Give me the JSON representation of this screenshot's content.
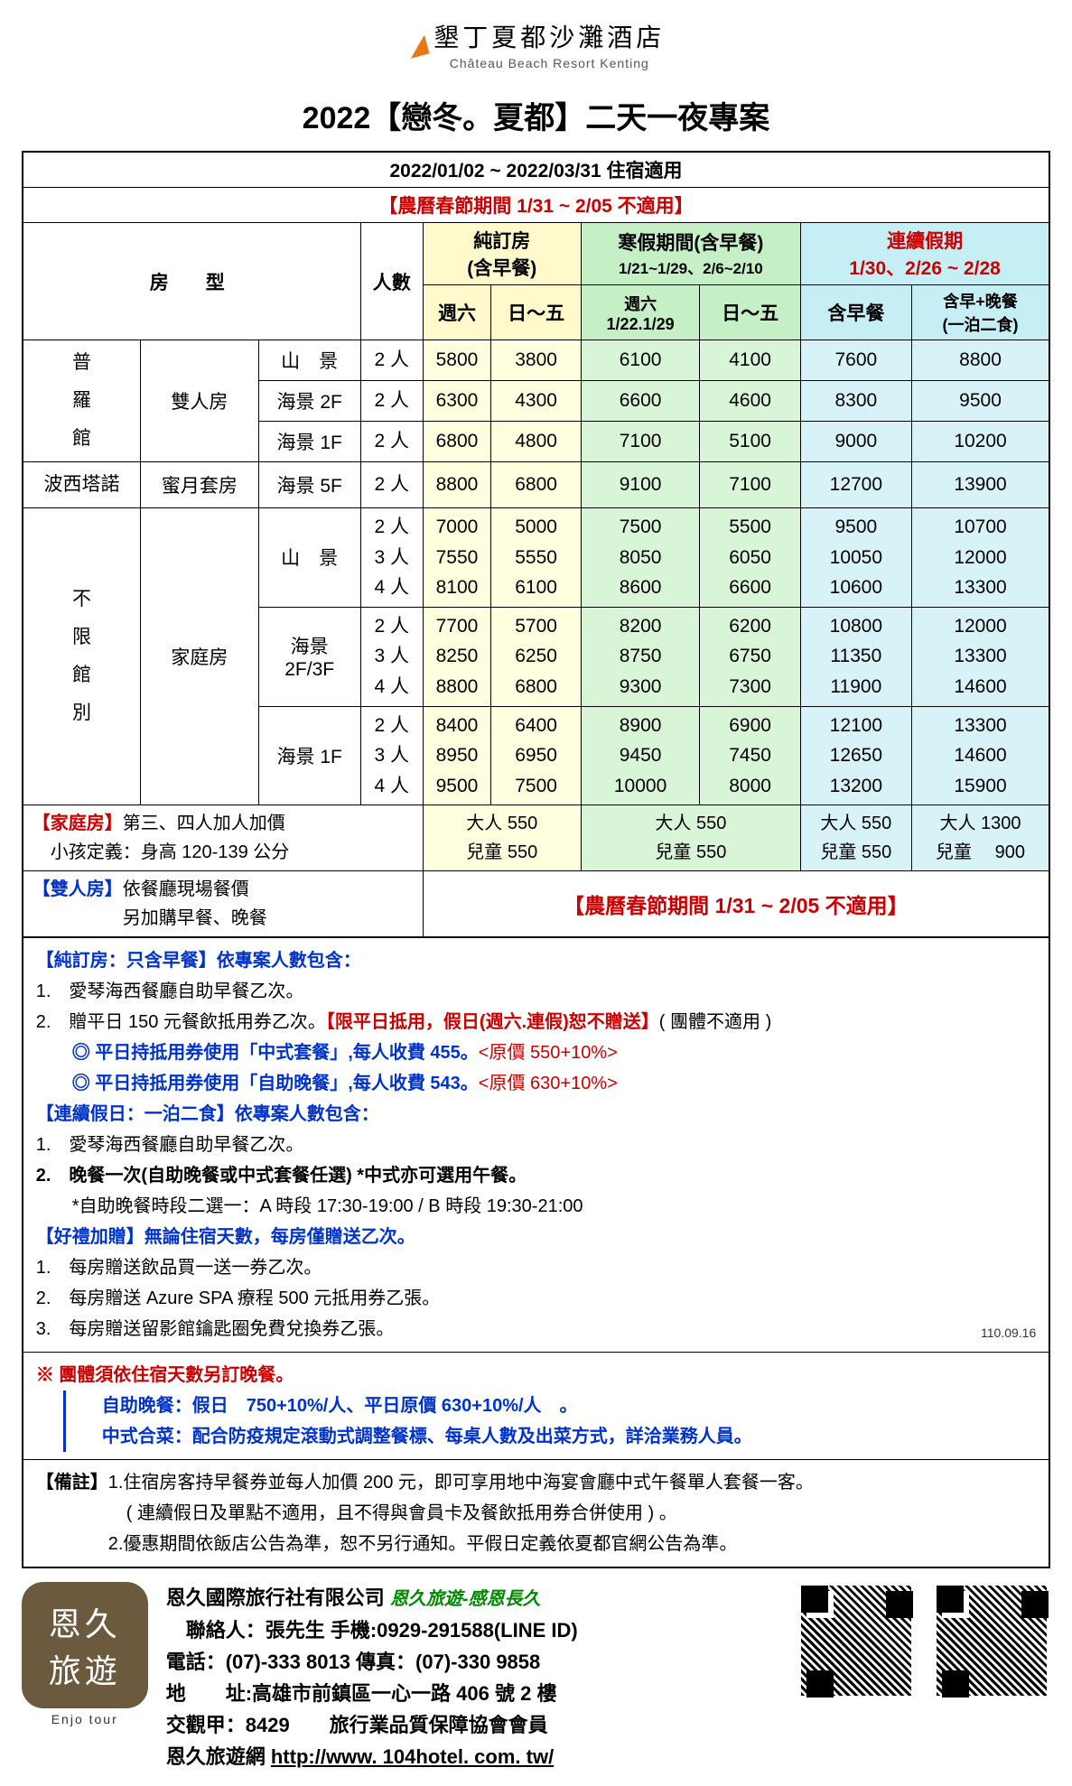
{
  "header": {
    "hotel_cn": "墾丁夏都沙灘酒店",
    "hotel_en": "Château Beach Resort Kenting"
  },
  "title": "2022【戀冬。夏都】二天一夜專案",
  "date_range": "2022/01/02 ~ 2022/03/31 住宿適用",
  "cny_note": "【農曆春節期間 1/31 ~ 2/05 不適用】",
  "table_headers": {
    "room_type": "房　型",
    "people": "人數",
    "pure": {
      "title": "純訂房",
      "sub": "(含早餐)",
      "col1": "週六",
      "col2": "日～五"
    },
    "winter": {
      "title": "寒假期間(含早餐)",
      "sub": "1/21~1/29、2/6~2/10",
      "col1": "週六\n1/22.1/29",
      "col2": "日～五"
    },
    "holiday": {
      "title": "連續假期",
      "sub": "1/30、2/26 ~ 2/28",
      "col1": "含早餐",
      "col2": "含早+晚餐\n(一泊二食)"
    }
  },
  "colors": {
    "yellow_hdr": "#fff9cc",
    "yellow_cell": "#ffffe0",
    "green_hdr": "#c5f0c5",
    "green_cell": "#d8f5d8",
    "cyan_hdr": "#c5eef5",
    "cyan_cell": "#d8f3f8",
    "red": "#c00",
    "blue": "#0033cc"
  },
  "rooms": [
    {
      "building": "普\n羅\n館",
      "building_rowspan": 3,
      "type": "雙人房",
      "type_rowspan": 3,
      "view": "山　景",
      "ppl": "2 人",
      "prices": [
        "5800",
        "3800",
        "6100",
        "4100",
        "7600",
        "8800"
      ]
    },
    {
      "view": "海景 2F",
      "ppl": "2 人",
      "prices": [
        "6300",
        "4300",
        "6600",
        "4600",
        "8300",
        "9500"
      ]
    },
    {
      "view": "海景 1F",
      "ppl": "2 人",
      "prices": [
        "6800",
        "4800",
        "7100",
        "5100",
        "9000",
        "10200"
      ]
    },
    {
      "building": "波西塔諾",
      "building_rowspan": 1,
      "type": "蜜月套房",
      "type_rowspan": 1,
      "view": "海景 5F",
      "ppl": "2 人",
      "prices": [
        "8800",
        "6800",
        "9100",
        "7100",
        "12700",
        "13900"
      ]
    },
    {
      "building": "不\n限\n館\n別",
      "building_rowspan": 3,
      "type": "家庭房",
      "type_rowspan": 3,
      "view": "山　景",
      "ppl": "2 人\n3 人\n4 人",
      "prices": [
        "7000\n7550\n8100",
        "5000\n5550\n6100",
        "7500\n8050\n8600",
        "5500\n6050\n6600",
        "9500\n10050\n10600",
        "10700\n12000\n13300"
      ]
    },
    {
      "view": "海景\n2F/3F",
      "ppl": "2 人\n3 人\n4 人",
      "prices": [
        "7700\n8250\n8800",
        "5700\n6250\n6800",
        "8200\n8750\n9300",
        "6200\n6750\n7300",
        "10800\n11350\n11900",
        "12000\n13300\n14600"
      ]
    },
    {
      "view": "海景 1F",
      "ppl": "2 人\n3 人\n4 人",
      "prices": [
        "8400\n8950\n9500",
        "6400\n6950\n7500",
        "8900\n9450\n10000",
        "6900\n7450\n8000",
        "12100\n12650\n13200",
        "13300\n14600\n15900"
      ]
    }
  ],
  "addon": {
    "family_label": "【家庭房】第三、四人加人加價\n　小孩定義：身高 120-139 公分",
    "pure": "大人 550\n兒童 550",
    "winter": "大人 550\n兒童 550",
    "hol1": "大人 550\n兒童 550",
    "hol2": "大人 1300\n兒童 　900",
    "double_label": "【雙人房】依餐廳現場餐價\n　　　　　另加購早餐、晚餐",
    "double_note": "【農曆春節期間 1/31 ~ 2/05 不適用】"
  },
  "notes": {
    "s1_title": "【純訂房：只含早餐】依專案人數包含：",
    "s1_l1": "1.　愛琴海西餐廳自助早餐乙次。",
    "s1_l2a": "2.　贈平日 150 元餐飲抵用券乙次。",
    "s1_l2b": "【限平日抵用，假日(週六.連假)恕不贈送】",
    "s1_l2c": "( 團體不適用 )",
    "s1_l3": "　　◎ 平日持抵用券使用「中式套餐」,每人收費 455。",
    "s1_l3b": "<原價 550+10%>",
    "s1_l4": "　　◎ 平日持抵用券使用「自助晚餐」,每人收費 543。",
    "s1_l4b": "<原價 630+10%>",
    "s2_title": "【連續假日：一泊二食】依專案人數包含：",
    "s2_l1": "1.　愛琴海西餐廳自助早餐乙次。",
    "s2_l2": "2.　晚餐一次(自助晚餐或中式套餐任選) *中式亦可選用午餐。",
    "s2_l3": "　　*自助晚餐時段二選一：A 時段 17:30-19:00 / B 時段 19:30-21:00",
    "s3_title": "【好禮加贈】無論住宿天數，每房僅贈送乙次。",
    "s3_l1": "1.　每房贈送飲品買一送一券乙次。",
    "s3_l2": "2.　每房贈送 Azure SPA 療程 500 元抵用券乙張。",
    "s3_l3": "3.　每房贈送留影館鑰匙圈免費兌換券乙張。",
    "date_footnote": "110.09.16",
    "group_title": "※ 團體須依住宿天數另訂晚餐。",
    "group_l1": "自助晚餐：假日　750+10%/人、平日原價 630+10%/人　。",
    "group_l2": "中式合菜：配合防疫規定滾動式調整餐標、每桌人數及出菜方式，詳洽業務人員。",
    "remark_title": "【備註】",
    "remark_l1": "1.住宿房客持早餐券並每人加價 200 元，即可享用地中海宴會廳中式午餐單人套餐一客。",
    "remark_l1b": "( 連續假日及單點不適用，且不得與會員卡及餐飲抵用券合併使用 ) 。",
    "remark_l2": "2.優惠期間依飯店公告為準，恕不另行通知。平假日定義依夏都官網公告為準。"
  },
  "footer": {
    "tour_logo": "恩久\n旅遊",
    "tour_logo_en": "Enjo tour",
    "company": "恩久國際旅行社有限公司",
    "slogan": "恩久旅遊-感恩長久",
    "contact": "　聯絡人：張先生 手機:0929-291588(LINE ID)",
    "tel": "電話：(07)-333 8013 傳真：(07)-330 9858",
    "addr": "地　　址:高雄市前鎮區一心一路 406 號 2 樓",
    "lic": "交觀甲：8429　　旅行業品質保障協會會員",
    "web_label": "恩久旅遊網 ",
    "web_url": "http://www. 104hotel. com. tw/"
  }
}
